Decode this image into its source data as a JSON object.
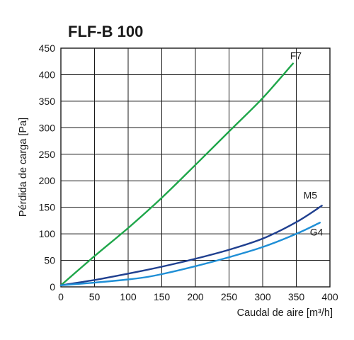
{
  "chart_data": {
    "type": "line",
    "title": "FLF-B 100",
    "xlabel": "Caudal de aire [m³/h]",
    "ylabel": "Pérdida de carga [Pa]",
    "xlim": [
      0,
      400
    ],
    "ylim": [
      0,
      450
    ],
    "x_ticks": [
      "0",
      "50",
      "100",
      "150",
      "200",
      "250",
      "300",
      "350",
      "400"
    ],
    "y_ticks": [
      "0",
      "50",
      "100",
      "150",
      "200",
      "250",
      "300",
      "350",
      "400",
      "450"
    ],
    "grid": true,
    "series": [
      {
        "name": "F7",
        "color": "#1fa64a",
        "points": [
          [
            0,
            3
          ],
          [
            50,
            58
          ],
          [
            100,
            111
          ],
          [
            150,
            168
          ],
          [
            200,
            230
          ],
          [
            250,
            293
          ],
          [
            300,
            356
          ],
          [
            345,
            421
          ]
        ]
      },
      {
        "name": "M5",
        "color": "#1f3f8f",
        "points": [
          [
            0,
            3
          ],
          [
            50,
            13
          ],
          [
            100,
            25
          ],
          [
            150,
            38
          ],
          [
            200,
            53
          ],
          [
            250,
            70
          ],
          [
            300,
            91
          ],
          [
            350,
            122
          ],
          [
            388,
            153
          ]
        ]
      },
      {
        "name": "G4",
        "color": "#1f8fd6",
        "points": [
          [
            0,
            3
          ],
          [
            50,
            8
          ],
          [
            100,
            14
          ],
          [
            125,
            18
          ],
          [
            150,
            24
          ],
          [
            200,
            39
          ],
          [
            250,
            56
          ],
          [
            300,
            75
          ],
          [
            350,
            100
          ],
          [
            385,
            121
          ]
        ]
      }
    ]
  }
}
